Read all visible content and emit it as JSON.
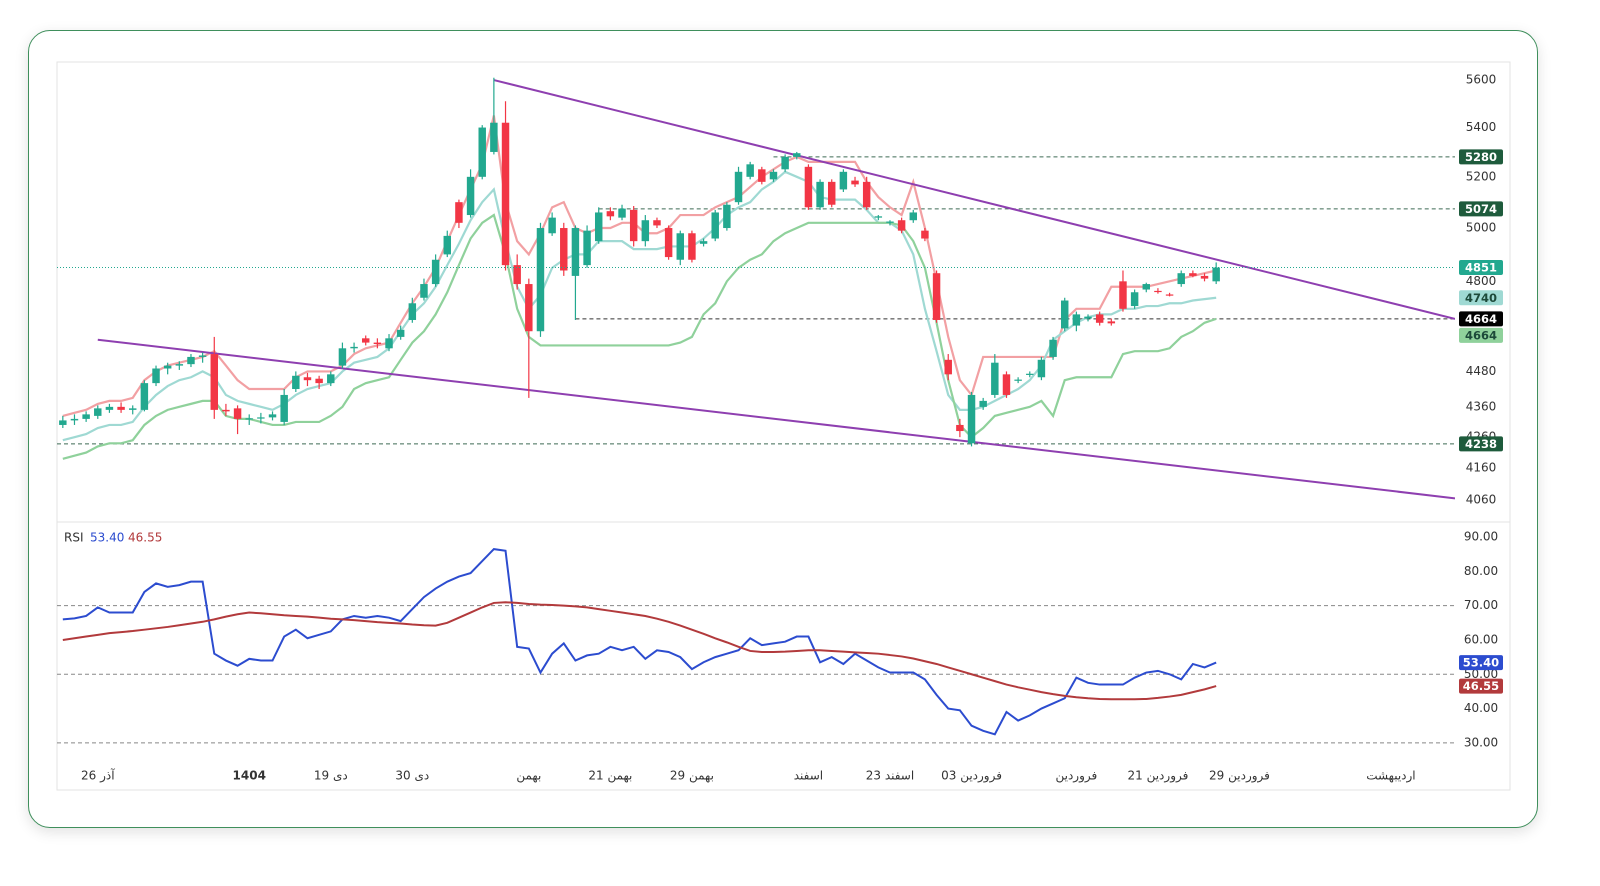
{
  "chart_data": [
    {
      "type": "candlestick",
      "xlim": [
        -0.5,
        119.5
      ],
      "ylim": [
        3992,
        5678
      ],
      "log": true,
      "yticks": [
        5600,
        5400,
        5200,
        5000,
        4800,
        4480,
        4360,
        4260,
        4160,
        4060
      ],
      "up_color": "#22a88f",
      "down_color": "#f23645",
      "price_line": true,
      "open": [
        4300,
        4315,
        4320,
        4330,
        4350,
        4360,
        4350,
        4350,
        4440,
        4490,
        4500,
        4505,
        4530,
        4540,
        4350,
        4355,
        4320,
        4322,
        4325,
        4310,
        4420,
        4460,
        4455,
        4440,
        4500,
        4560,
        4595,
        4580,
        4560,
        4600,
        4660,
        4740,
        4790,
        4900,
        5100,
        5050,
        5200,
        5300,
        5420,
        4860,
        4790,
        4620,
        4980,
        5000,
        4820,
        4860,
        4950,
        5065,
        5040,
        5070,
        4950,
        5030,
        5000,
        4880,
        4980,
        4940,
        4960,
        5000,
        5100,
        5200,
        5230,
        5190,
        5230,
        5280,
        5240,
        5080,
        5180,
        5150,
        5185,
        5180,
        5040,
        5020,
        5030,
        5030,
        4990,
        4830,
        4520,
        4300,
        4240,
        4360,
        4400,
        4470,
        4450,
        4470,
        4460,
        4530,
        4630,
        4640,
        4665,
        4680,
        4655,
        4800,
        4710,
        4770,
        4765,
        4752,
        4790,
        4830,
        4820,
        4800
      ],
      "high": [
        4330,
        4335,
        4345,
        4365,
        4370,
        4375,
        4365,
        4450,
        4500,
        4510,
        4515,
        4540,
        4545,
        4600,
        4370,
        4365,
        4335,
        4340,
        4345,
        4420,
        4480,
        4475,
        4465,
        4480,
        4580,
        4580,
        4605,
        4595,
        4610,
        4640,
        4740,
        4810,
        4900,
        4990,
        5110,
        5230,
        5410,
        5610,
        5510,
        4900,
        4810,
        5020,
        5060,
        5020,
        5010,
        5010,
        5080,
        5080,
        5090,
        5085,
        5050,
        5040,
        5010,
        4990,
        4990,
        4960,
        5070,
        5100,
        5240,
        5260,
        5240,
        5230,
        5290,
        5300,
        5250,
        5190,
        5190,
        5230,
        5200,
        5200,
        5050,
        5030,
        5040,
        5070,
        5000,
        4840,
        4540,
        4320,
        4410,
        4390,
        4540,
        4480,
        4460,
        4480,
        4530,
        4600,
        4740,
        4690,
        4680,
        4690,
        4665,
        4840,
        4770,
        4795,
        4775,
        4758,
        4840,
        4840,
        4830,
        4870
      ],
      "low": [
        4290,
        4300,
        4310,
        4320,
        4340,
        4340,
        4335,
        4345,
        4430,
        4470,
        4485,
        4495,
        4510,
        4320,
        4330,
        4270,
        4300,
        4305,
        4315,
        4300,
        4410,
        4430,
        4420,
        4430,
        4490,
        4545,
        4570,
        4560,
        4550,
        4590,
        4650,
        4730,
        4780,
        4890,
        5000,
        5040,
        5190,
        5290,
        4840,
        4770,
        4390,
        4600,
        4970,
        4820,
        4660,
        4850,
        4940,
        5030,
        5030,
        4930,
        4930,
        5000,
        4880,
        4860,
        4870,
        4930,
        4950,
        4990,
        5090,
        5190,
        5170,
        5180,
        5220,
        5270,
        5070,
        5070,
        5080,
        5140,
        5160,
        5070,
        5030,
        5010,
        4980,
        5020,
        4950,
        4650,
        4450,
        4260,
        4230,
        4350,
        4390,
        4390,
        4440,
        4460,
        4450,
        4520,
        4620,
        4620,
        4655,
        4640,
        4640,
        4690,
        4700,
        4760,
        4755,
        4745,
        4780,
        4815,
        4800,
        4790
      ],
      "close": [
        4315,
        4320,
        4335,
        4355,
        4360,
        4350,
        4355,
        4440,
        4490,
        4500,
        4505,
        4530,
        4535,
        4350,
        4345,
        4320,
        4322,
        4325,
        4335,
        4400,
        4465,
        4450,
        4440,
        4470,
        4560,
        4565,
        4580,
        4575,
        4595,
        4625,
        4720,
        4790,
        4880,
        4970,
        5020,
        5200,
        5400,
        5420,
        4860,
        4790,
        4620,
        5000,
        5040,
        4840,
        5000,
        4990,
        5060,
        5045,
        5075,
        4950,
        5030,
        5010,
        4890,
        4980,
        4880,
        4950,
        5060,
        5090,
        5220,
        5250,
        5180,
        5220,
        5280,
        5295,
        5080,
        5180,
        5090,
        5220,
        5170,
        5080,
        5045,
        5025,
        4990,
        5060,
        4960,
        4660,
        4470,
        4280,
        4400,
        4380,
        4510,
        4400,
        4452,
        4472,
        4520,
        4590,
        4730,
        4680,
        4672,
        4650,
        4648,
        4700,
        4760,
        4790,
        4762,
        4750,
        4830,
        4820,
        4810,
        4851
      ],
      "lines": [
        {
          "color": "#f2a0a3",
          "values": [
            4330,
            4340,
            4350,
            4370,
            4380,
            4380,
            4390,
            4450,
            4480,
            4500,
            4510,
            4520,
            4530,
            4550,
            4500,
            4450,
            4420,
            4420,
            4420,
            4420,
            4460,
            4480,
            4480,
            4480,
            4500,
            4540,
            4560,
            4570,
            4580,
            4650,
            4720,
            4780,
            4850,
            4950,
            5050,
            5150,
            5250,
            5450,
            5100,
            4950,
            4900,
            4980,
            5080,
            5100,
            5000,
            4980,
            5000,
            5000,
            5020,
            5020,
            4980,
            4980,
            5000,
            5050,
            5050,
            5050,
            5080,
            5100,
            5120,
            5160,
            5200,
            5230,
            5260,
            5280,
            5260,
            5260,
            5260,
            5260,
            5260,
            5180,
            5120,
            5080,
            5050,
            5180,
            5000,
            4800,
            4600,
            4450,
            4400,
            4530,
            4530,
            4530,
            4530,
            4530,
            4530,
            4530,
            4660,
            4700,
            4700,
            4700,
            4780,
            4780,
            4780,
            4780,
            4790,
            4800,
            4810,
            4820,
            4830,
            4840
          ]
        },
        {
          "color": "#9fd9d3",
          "values": [
            4250,
            4260,
            4270,
            4290,
            4300,
            4300,
            4310,
            4360,
            4400,
            4430,
            4450,
            4460,
            4480,
            4460,
            4400,
            4380,
            4370,
            4360,
            4350,
            4370,
            4400,
            4420,
            4430,
            4440,
            4480,
            4510,
            4520,
            4530,
            4560,
            4620,
            4680,
            4720,
            4780,
            4860,
            4940,
            5030,
            5100,
            5150,
            4950,
            4780,
            4700,
            4750,
            4850,
            4880,
            4900,
            4900,
            4950,
            4950,
            4950,
            4920,
            4920,
            4920,
            4930,
            4930,
            4930,
            4960,
            5000,
            5050,
            5080,
            5100,
            5150,
            5180,
            5220,
            5200,
            5180,
            5120,
            5110,
            5110,
            5110,
            5070,
            5020,
            5020,
            4990,
            4900,
            4700,
            4550,
            4400,
            4350,
            4350,
            4360,
            4380,
            4400,
            4420,
            4450,
            4500,
            4590,
            4620,
            4650,
            4670,
            4680,
            4680,
            4700,
            4700,
            4710,
            4710,
            4720,
            4720,
            4730,
            4735,
            4740
          ]
        },
        {
          "color": "#8fd19b",
          "values": [
            4190,
            4200,
            4210,
            4230,
            4240,
            4240,
            4250,
            4300,
            4330,
            4350,
            4360,
            4370,
            4380,
            4380,
            4330,
            4320,
            4320,
            4310,
            4300,
            4300,
            4310,
            4310,
            4310,
            4330,
            4360,
            4420,
            4440,
            4450,
            4460,
            4520,
            4580,
            4620,
            4680,
            4760,
            4860,
            4960,
            5020,
            5050,
            4900,
            4700,
            4600,
            4570,
            4570,
            4570,
            4570,
            4570,
            4570,
            4570,
            4570,
            4570,
            4570,
            4570,
            4570,
            4580,
            4600,
            4680,
            4720,
            4800,
            4850,
            4880,
            4900,
            4950,
            4980,
            5000,
            5020,
            5020,
            5020,
            5020,
            5020,
            5020,
            5020,
            5020,
            5010,
            4950,
            4850,
            4650,
            4450,
            4300,
            4260,
            4290,
            4330,
            4340,
            4350,
            4360,
            4380,
            4330,
            4450,
            4460,
            4460,
            4460,
            4460,
            4540,
            4550,
            4550,
            4550,
            4560,
            4600,
            4620,
            4650,
            4664
          ]
        }
      ],
      "levels": [
        {
          "value": 5280,
          "from": 61,
          "color": "#1e5b3c"
        },
        {
          "value": 5074,
          "from": 46,
          "color": "#1e5b3c"
        },
        {
          "value": 4664,
          "from": 44,
          "color": "#000000"
        },
        {
          "value": 4238,
          "from": -0.5,
          "color": "#1e5b3c"
        }
      ],
      "trendlines": [
        {
          "x": [
            37,
            119.5
          ],
          "y": [
            5600,
            4664
          ],
          "color": "#8e3fb0"
        },
        {
          "x": [
            3,
            119.5
          ],
          "y": [
            4590,
            4065
          ],
          "color": "#8e3fb0"
        }
      ]
    },
    {
      "type": "line",
      "title": "RSI",
      "xlim": [
        -0.5,
        119.5
      ],
      "ylim": [
        25,
        94.4
      ],
      "yticks": [
        {
          "value": 90,
          "label": "90.00"
        },
        {
          "value": 80,
          "label": "80.00"
        },
        {
          "value": 70,
          "label": "70.00"
        },
        {
          "value": 60,
          "label": "60.00"
        },
        {
          "value": 50,
          "label": "50.00"
        },
        {
          "value": 40,
          "label": "40.00"
        },
        {
          "value": 30,
          "label": "30.00"
        }
      ],
      "levels": [
        70,
        50,
        30
      ],
      "xticks": [
        {
          "value": 3,
          "label": "26 آذر"
        },
        {
          "value": 16,
          "label": "1404"
        },
        {
          "value": 23,
          "label": "19 دی"
        },
        {
          "value": 30,
          "label": "30 دی"
        },
        {
          "value": 40,
          "label": "بهمن"
        },
        {
          "value": 47,
          "label": "21 بهمن"
        },
        {
          "value": 54,
          "label": "29 بهمن"
        },
        {
          "value": 64,
          "label": "اسفند"
        },
        {
          "value": 71,
          "label": "23 اسفند"
        },
        {
          "value": 78,
          "label": "03 فروردین"
        },
        {
          "value": 87,
          "label": "فروردین"
        },
        {
          "value": 94,
          "label": "21 فروردین"
        },
        {
          "value": 101,
          "label": "29 فروردین"
        },
        {
          "value": 114,
          "label": "اردیبهشت"
        }
      ],
      "series": [
        {
          "color": "#2c4ccf",
          "values": [
            66,
            66.3,
            67,
            69.5,
            68,
            68,
            68,
            74,
            76.5,
            75.5,
            76,
            77,
            77,
            56,
            54,
            52.5,
            54.5,
            54,
            54,
            61,
            63,
            60.5,
            61.5,
            62.5,
            66,
            67,
            66.5,
            67,
            66.5,
            65.5,
            69,
            72.5,
            75,
            77,
            78.5,
            79.5,
            83,
            86.5,
            86,
            58,
            57.5,
            50.5,
            56,
            59,
            54,
            55.5,
            56,
            58,
            57,
            58,
            54.5,
            57,
            56.5,
            55,
            51.5,
            53.5,
            55,
            56,
            57,
            60.5,
            58.5,
            59,
            59.5,
            61,
            61,
            53.5,
            55,
            53,
            56,
            54,
            52,
            50.5,
            50.5,
            50.5,
            48.5,
            44,
            40,
            39.5,
            35,
            33.5,
            32.5,
            39,
            36.5,
            38,
            40,
            41.5,
            43,
            49,
            47.5,
            47,
            47,
            47,
            49,
            50.5,
            51,
            50,
            48.5,
            53,
            52,
            53.4
          ],
          "value_labels": [
            null,
            null,
            null,
            null,
            null,
            null,
            null,
            null,
            null,
            null,
            null,
            null,
            null,
            null,
            null,
            null,
            null,
            null,
            null,
            null,
            null,
            null,
            null,
            null,
            null,
            null,
            null,
            null,
            null,
            null,
            null,
            null,
            null,
            null,
            null,
            null,
            null,
            null,
            null,
            null,
            null,
            null,
            null,
            null,
            null,
            null,
            null,
            null,
            null,
            null,
            null,
            null,
            null,
            null,
            null,
            null,
            null,
            null,
            null,
            null,
            null,
            null,
            null,
            null,
            null,
            null,
            null,
            null,
            null,
            null,
            null,
            null,
            null,
            null,
            null,
            null,
            null,
            null,
            null,
            null,
            null,
            null,
            null,
            null,
            null,
            null,
            null,
            null,
            null,
            null,
            null,
            null,
            null,
            null,
            null,
            null,
            null,
            null,
            null,
            "53.40"
          ]
        },
        {
          "color": "#b23a3c",
          "values": [
            60,
            60.5,
            61,
            61.5,
            62,
            62.3,
            62.6,
            63,
            63.4,
            63.8,
            64.3,
            64.8,
            65.3,
            66,
            66.8,
            67.5,
            68,
            67.8,
            67.5,
            67.2,
            67,
            66.8,
            66.5,
            66.2,
            66,
            65.8,
            65.5,
            65.2,
            65,
            64.8,
            64.5,
            64.3,
            64.2,
            65,
            66.5,
            68,
            69.5,
            70.8,
            71,
            70.8,
            70.5,
            70.3,
            70.2,
            70,
            69.8,
            69.5,
            69,
            68.5,
            68,
            67.5,
            67,
            66.2,
            65.3,
            64.2,
            63,
            61.8,
            60.5,
            59.3,
            58,
            56.8,
            56.5,
            56.5,
            56.6,
            56.8,
            57,
            57,
            56.8,
            56.6,
            56.4,
            56.2,
            56,
            55.6,
            55.2,
            54.6,
            53.8,
            53,
            52,
            51,
            50,
            49,
            48,
            47,
            46.2,
            45.5,
            44.8,
            44.2,
            43.7,
            43.3,
            43,
            42.8,
            42.7,
            42.7,
            42.7,
            42.8,
            43.1,
            43.5,
            44,
            44.8,
            45.6,
            46.55
          ]
        }
      ]
    }
  ]
}
